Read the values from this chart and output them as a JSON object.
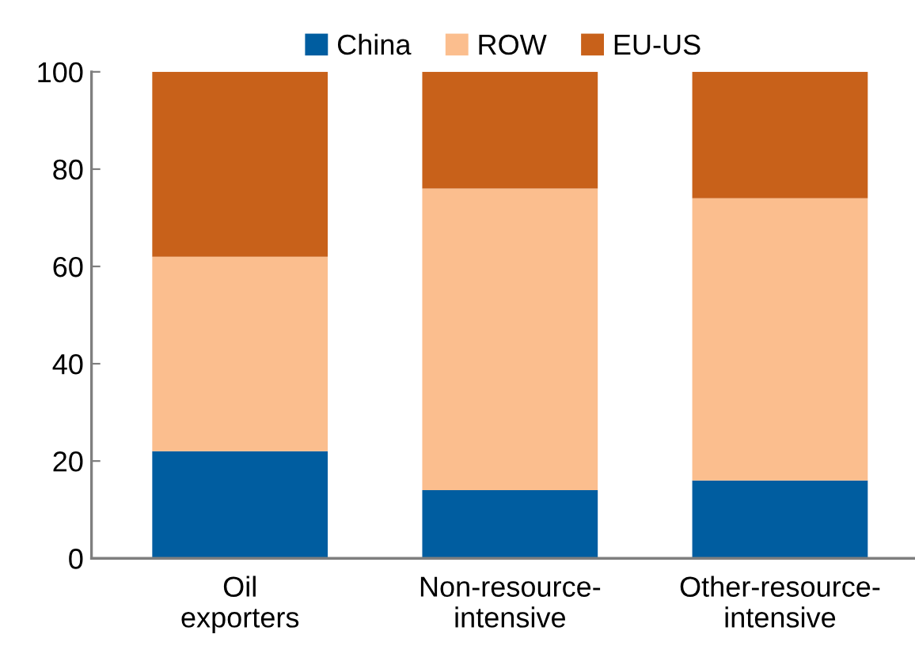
{
  "chart_data": {
    "type": "bar",
    "stacked": true,
    "categories": [
      "Oil\nexporters",
      "Non-resource-\nintensive",
      "Other-resource-\nintensive"
    ],
    "series": [
      {
        "name": "China",
        "color": "#005da0",
        "values": [
          22,
          14,
          16
        ]
      },
      {
        "name": "ROW",
        "color": "#fbbe8e",
        "values": [
          40,
          62,
          58
        ]
      },
      {
        "name": "EU-US",
        "color": "#c8611a",
        "values": [
          38,
          24,
          26
        ]
      }
    ],
    "ylim": [
      0,
      100
    ],
    "yticks": [
      0,
      20,
      40,
      60,
      80,
      100
    ],
    "grid": false,
    "legend": "top"
  }
}
